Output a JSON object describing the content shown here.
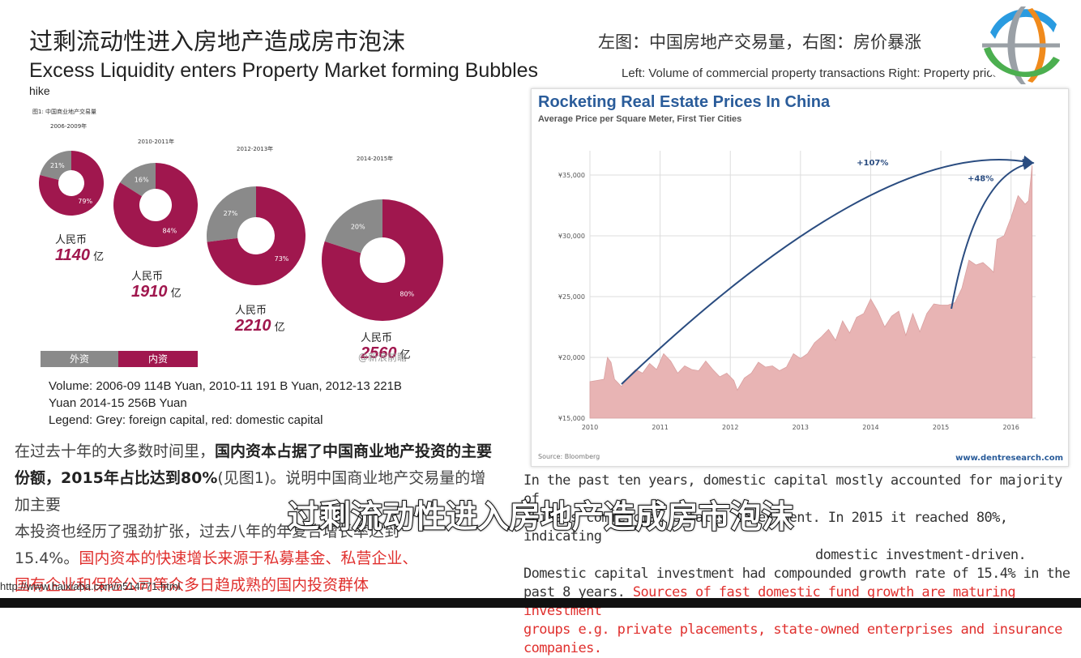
{
  "header": {
    "title_cn": "过剩流动性进入房地产造成房市泡沫",
    "title_en": "Excess Liquidity enters Property Market forming Bubbles",
    "title_en_cont": "hike",
    "right_cn": "左图：中国房地产交易量，右图：房价暴涨",
    "right_en": "Left: Volume of commercial property transactions  Right: Property price"
  },
  "donut_figure": {
    "label": "图1: 中国商业地产交易量",
    "unit_prefix": "人民币",
    "unit_suffix": "亿",
    "donuts": [
      {
        "period": "2006-2009年",
        "foreign_pct": 21,
        "domestic_pct": 79,
        "foreign_label": "21%",
        "domestic_label": "79%",
        "amount": "1140"
      },
      {
        "period": "2010-2011年",
        "foreign_pct": 16,
        "domestic_pct": 84,
        "foreign_label": "16%",
        "domestic_label": "84%",
        "amount": "1910"
      },
      {
        "period": "2012-2013年",
        "foreign_pct": 27,
        "domestic_pct": 73,
        "foreign_label": "27%",
        "domestic_label": "73%",
        "amount": "2210"
      },
      {
        "period": "2014-2015年",
        "foreign_pct": 20,
        "domestic_pct": 80,
        "foreign_label": "20%",
        "domestic_label": "80%",
        "amount": "2560"
      }
    ],
    "legend_foreign": "外资",
    "legend_domestic": "内资",
    "watermark": "@新浪前瞻",
    "colors": {
      "foreign": "#8a8a8a",
      "domestic": "#a0174e"
    }
  },
  "volume_text": {
    "line1": "Volume:  2006-09 114B Yuan, 2010-11 191 B Yuan, 2012-13 221B",
    "line2": "Yuan 2014-15 256B Yuan",
    "line3": "Legend: Grey: foreign capital, red: domestic capital"
  },
  "para_cn": {
    "p1": "在过去十年的大多数时间里，",
    "p1b": "国内资本占据了中国商业地产投资的主要份额，2015年占比达到80%",
    "p1c": "(见图1)。说明中国商业地产交易量的增加主要",
    "p2": "本投资也经历了强劲扩张，过去八年的年复合增长率达到",
    "p3": "15.4%。",
    "p3red": "国内资本的快速增长来源于私募基金、私营企业、",
    "p4red": "国有企业和保险公司等众多日趋成熟的国内投资群体"
  },
  "para_en": {
    "l1": "In the past ten years, domestic capital mostly accounted for majority of",
    "l2": "China's commercial estates investment. In 2015 it reached 80%, indicating",
    "l3": "domestic investment-driven.",
    "l4": "Domestic capital investment had compounded growth rate of 15.4% in the",
    "l5": "past 8 years.",
    "l5red": "Sources of fast domestic fund growth are maturing investment",
    "l6red": "groups e.g. private placements, state-owned enterprises and insurance",
    "l7red": "companies."
  },
  "subtitle": "过剩流动性进入房地产造成房市泡沫",
  "url": "http://www.haixiaba.com/n514771.html",
  "chart_data": {
    "type": "area",
    "title": "Rocketing Real Estate Prices In China",
    "subtitle": "Average Price per Square Meter, First Tier Cities",
    "source": "Source: Bloomberg",
    "credit": "www.dentresearch.com",
    "x_ticks": [
      "2010",
      "2011",
      "2012",
      "2013",
      "2014",
      "2015",
      "2016"
    ],
    "y_ticks": [
      "¥15,000",
      "¥20,000",
      "¥25,000",
      "¥30,000",
      "¥35,000"
    ],
    "y_tick_values": [
      15000,
      20000,
      25000,
      30000,
      35000
    ],
    "xlim": [
      2010,
      2016.35
    ],
    "ylim": [
      15000,
      37000
    ],
    "grid": true,
    "annotations": [
      {
        "text": "+107%",
        "from_x": 2010.45,
        "from_y": 17800,
        "to_x": 2016.3,
        "to_y": 36000
      },
      {
        "text": "+48%",
        "from_x": 2015.15,
        "from_y": 24000,
        "to_x": 2016.3,
        "to_y": 36000
      }
    ],
    "series": [
      {
        "x": [
          2010.0,
          2010.1,
          2010.2,
          2010.25,
          2010.3,
          2010.35,
          2010.45,
          2010.55,
          2010.65,
          2010.75,
          2010.85,
          2010.95,
          2011.05,
          2011.15,
          2011.25,
          2011.35,
          2011.45,
          2011.55,
          2011.65,
          2011.75,
          2011.85,
          2011.95,
          2012.05,
          2012.1,
          2012.2,
          2012.3,
          2012.4,
          2012.5,
          2012.6,
          2012.7,
          2012.8,
          2012.9,
          2013.0,
          2013.1,
          2013.2,
          2013.3,
          2013.4,
          2013.5,
          2013.6,
          2013.7,
          2013.8,
          2013.9,
          2014.0,
          2014.1,
          2014.2,
          2014.3,
          2014.4,
          2014.5,
          2014.6,
          2014.7,
          2014.8,
          2014.9,
          2015.0,
          2015.1,
          2015.2,
          2015.3,
          2015.4,
          2015.5,
          2015.6,
          2015.7,
          2015.75,
          2015.8,
          2015.9,
          2016.0,
          2016.1,
          2016.2,
          2016.25,
          2016.3
        ],
        "values": [
          18000,
          18100,
          18200,
          20000,
          19600,
          18200,
          17600,
          18400,
          19000,
          18700,
          19500,
          19000,
          20300,
          19700,
          18700,
          19300,
          19000,
          18900,
          19700,
          19000,
          18400,
          18700,
          18100,
          17300,
          18300,
          18700,
          19600,
          19200,
          19300,
          18900,
          19200,
          20300,
          19900,
          20300,
          21200,
          21700,
          22300,
          21400,
          23000,
          22000,
          23300,
          23600,
          24800,
          23800,
          22500,
          23400,
          23800,
          21800,
          23600,
          22100,
          23600,
          24400,
          24300,
          24300,
          24500,
          25700,
          28000,
          27600,
          27800,
          27300,
          27000,
          29700,
          30000,
          31500,
          33300,
          32600,
          32900,
          35800
        ]
      }
    ]
  }
}
